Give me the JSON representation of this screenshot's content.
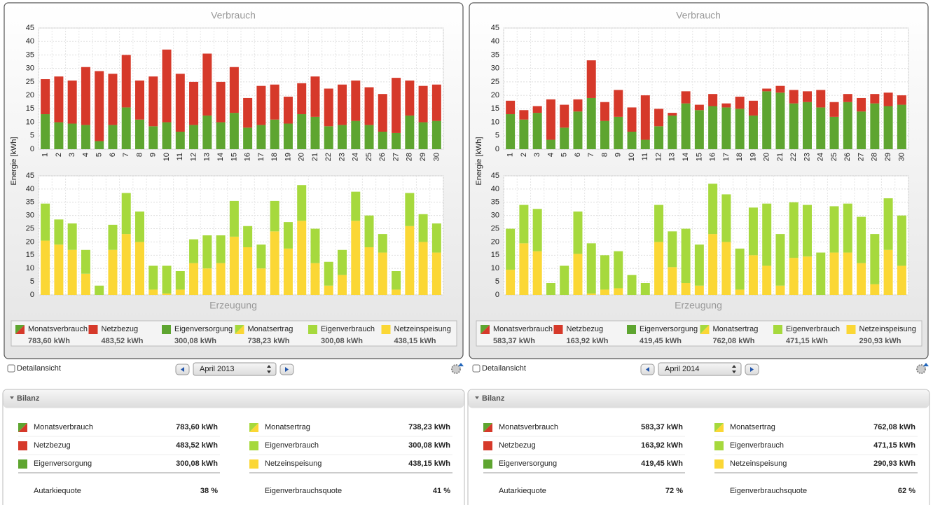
{
  "chart_data": [
    {
      "type": "bar",
      "stacked": true,
      "title": "Verbrauch",
      "y_label": "Energie [kWh]",
      "categories": [
        "1",
        "2",
        "3",
        "4",
        "5",
        "6",
        "7",
        "8",
        "9",
        "10",
        "11",
        "12",
        "13",
        "14",
        "15",
        "16",
        "17",
        "18",
        "19",
        "20",
        "21",
        "22",
        "23",
        "24",
        "25",
        "26",
        "27",
        "28",
        "29",
        "30"
      ],
      "ylim": [
        0,
        45
      ],
      "yticks": [
        0,
        5,
        10,
        15,
        20,
        25,
        30,
        35,
        40,
        45
      ],
      "grid": true,
      "series": [
        {
          "name": "Eigenversorgung",
          "color": "#5ea530",
          "values": [
            13,
            10,
            9.5,
            9,
            3,
            9,
            15.5,
            11,
            8.5,
            10,
            6.5,
            9,
            12.5,
            10,
            13.5,
            8,
            9,
            11,
            9.5,
            13,
            12,
            8.5,
            9,
            10.5,
            9,
            6.5,
            6,
            12.5,
            10,
            10.5
          ]
        },
        {
          "name": "Netzbezug",
          "color": "#d6392a",
          "values": [
            13,
            17,
            16,
            21.5,
            26,
            19,
            19.5,
            14.5,
            18.5,
            27,
            21.5,
            16,
            23,
            15,
            17,
            11,
            14.5,
            13,
            10,
            11.5,
            15,
            14,
            15,
            15,
            14,
            14,
            20.5,
            13,
            13.5,
            13.5
          ]
        }
      ]
    },
    {
      "type": "bar",
      "stacked": true,
      "title": "Erzeugung",
      "ylim": [
        0,
        45
      ],
      "yticks": [
        0,
        5,
        10,
        15,
        20,
        25,
        30,
        35,
        40,
        45
      ],
      "grid": true,
      "series": [
        {
          "name": "Netzeinspeisung",
          "color": "#fbd735",
          "values": [
            20.5,
            19,
            17,
            8,
            0,
            17,
            23,
            20,
            2,
            0.5,
            2,
            12,
            10,
            12,
            22,
            18,
            10,
            24,
            17.5,
            28,
            12,
            3.5,
            7.5,
            28,
            18,
            16,
            2,
            26,
            20,
            16
          ]
        },
        {
          "name": "Eigenverbrauch",
          "color": "#a6d93d",
          "values": [
            14,
            9.5,
            10,
            9,
            3.5,
            9.5,
            15.5,
            11.5,
            9,
            10.5,
            7,
            9,
            12.5,
            10.5,
            13.5,
            8,
            9,
            11.5,
            10,
            13.5,
            13,
            9,
            9.5,
            11,
            12,
            7,
            7,
            12.5,
            10.5,
            11
          ]
        }
      ]
    },
    {
      "type": "bar",
      "stacked": true,
      "title": "Verbrauch",
      "y_label": "Energie [kWh]",
      "categories": [
        "1",
        "2",
        "3",
        "4",
        "5",
        "6",
        "7",
        "8",
        "9",
        "10",
        "11",
        "12",
        "13",
        "14",
        "15",
        "16",
        "17",
        "18",
        "19",
        "20",
        "21",
        "22",
        "23",
        "24",
        "25",
        "26",
        "27",
        "28",
        "29",
        "30"
      ],
      "ylim": [
        0,
        45
      ],
      "yticks": [
        0,
        5,
        10,
        15,
        20,
        25,
        30,
        35,
        40,
        45
      ],
      "grid": true,
      "series": [
        {
          "name": "Eigenversorgung",
          "color": "#5ea530",
          "values": [
            13,
            11,
            13.5,
            3.5,
            8,
            14,
            19,
            10.5,
            12,
            6.5,
            3.5,
            8.5,
            12.5,
            17,
            14.5,
            16,
            15.5,
            15,
            12.5,
            21.5,
            21,
            17,
            17.5,
            15.5,
            12,
            17.5,
            14,
            17,
            16,
            16.5
          ]
        },
        {
          "name": "Netzbezug",
          "color": "#d6392a",
          "values": [
            5,
            3.5,
            2.5,
            15,
            8.5,
            4.5,
            14,
            7,
            10,
            9,
            16.5,
            6.5,
            1,
            4.5,
            2,
            4.5,
            1.5,
            4.5,
            5.5,
            1,
            2.5,
            5,
            4,
            6.5,
            5.5,
            3,
            5,
            3.5,
            5,
            3.5
          ]
        }
      ]
    },
    {
      "type": "bar",
      "stacked": true,
      "title": "Erzeugung",
      "ylim": [
        0,
        45
      ],
      "yticks": [
        0,
        5,
        10,
        15,
        20,
        25,
        30,
        35,
        40,
        45
      ],
      "grid": true,
      "series": [
        {
          "name": "Netzeinspeisung",
          "color": "#fbd735",
          "values": [
            9.5,
            19.5,
            16.5,
            0,
            0,
            15.5,
            0.5,
            2,
            2.5,
            0,
            0,
            20,
            10.5,
            4.5,
            3.5,
            23,
            20,
            2,
            15,
            11,
            3.5,
            14,
            14.5,
            0,
            16,
            16,
            12,
            4,
            17,
            11
          ]
        },
        {
          "name": "Eigenverbrauch",
          "color": "#a6d93d",
          "values": [
            15.5,
            14.5,
            16,
            4.5,
            11,
            16,
            19,
            13,
            14,
            7.5,
            4.5,
            14,
            13.5,
            20.5,
            15.5,
            19,
            18,
            15.5,
            18,
            23.5,
            19.5,
            21,
            19.5,
            16,
            17.5,
            18.5,
            17.5,
            19,
            19.5,
            19
          ]
        }
      ]
    }
  ],
  "panels": [
    {
      "legend": [
        {
          "label": "Monatsverbrauch",
          "value": "783,60 kWh"
        },
        {
          "value": "483,52 kWh"
        },
        {
          "value": "300,08 kWh"
        },
        {
          "label": "Monatsertrag",
          "value": "738,23 kWh"
        },
        {
          "value": "300,08 kWh"
        },
        {
          "value": "438,15 kWh"
        }
      ],
      "detail": "Detailansicht",
      "month": "April 2013",
      "bilanz": {
        "title": "Bilanz",
        "left": {
          "rows": [
            {
              "label": "Monatsverbrauch",
              "value": "783,60 kWh"
            },
            {
              "label": "Netzbezug",
              "value": "483,52 kWh"
            },
            {
              "label": "Eigenversorgung",
              "value": "300,08 kWh"
            }
          ],
          "quota": {
            "label": "Autarkiequote",
            "value": "38 %"
          }
        },
        "right": {
          "rows": [
            {
              "label": "Monatsertrag",
              "value": "738,23 kWh"
            },
            {
              "label": "Eigenverbrauch",
              "value": "300,08 kWh"
            },
            {
              "label": "Netzeinspeisung",
              "value": "438,15 kWh"
            }
          ],
          "quota": {
            "label": "Eigenverbrauchsquote",
            "value": "41 %"
          }
        }
      }
    },
    {
      "legend": [
        {
          "label": "Monatsverbrauch",
          "value": "583,37 kWh"
        },
        {
          "value": "163,92 kWh"
        },
        {
          "value": "419,45 kWh"
        },
        {
          "label": "Monatsertrag",
          "value": "762,08 kWh"
        },
        {
          "value": "471,15 kWh"
        },
        {
          "value": "290,93 kWh"
        }
      ],
      "detail": "Detailansicht",
      "month": "April 2014",
      "bilanz": {
        "title": "Bilanz",
        "left": {
          "rows": [
            {
              "label": "Monatsverbrauch",
              "value": "583,37 kWh"
            },
            {
              "label": "Netzbezug",
              "value": "163,92 kWh"
            },
            {
              "label": "Eigenversorgung",
              "value": "419,45 kWh"
            }
          ],
          "quota": {
            "label": "Autarkiequote",
            "value": "72 %"
          }
        },
        "right": {
          "rows": [
            {
              "label": "Monatsertrag",
              "value": "762,08 kWh"
            },
            {
              "label": "Eigenverbrauch",
              "value": "471,15 kWh"
            },
            {
              "label": "Netzeinspeisung",
              "value": "290,93 kWh"
            }
          ],
          "quota": {
            "label": "Eigenverbrauchsquote",
            "value": "62 %"
          }
        }
      }
    }
  ]
}
